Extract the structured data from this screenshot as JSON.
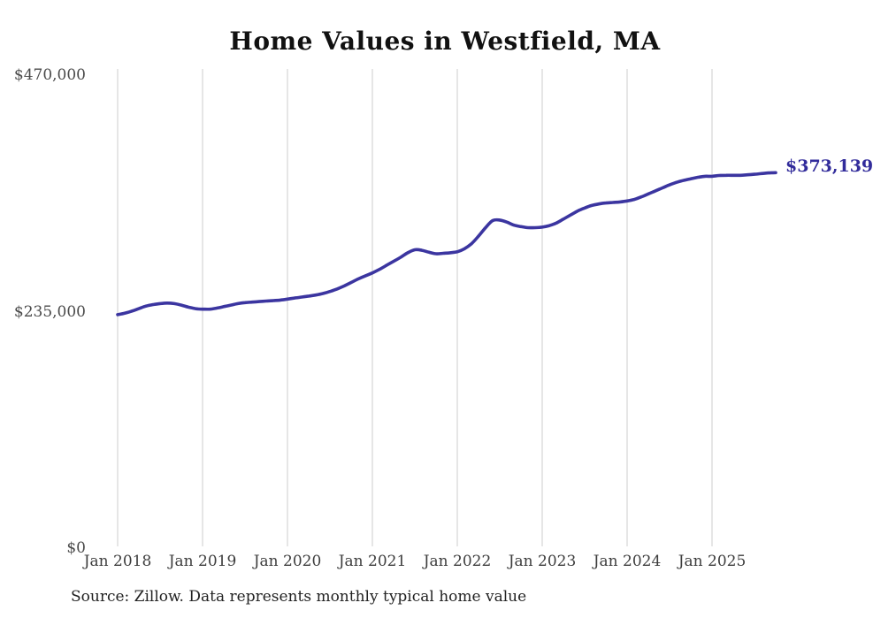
{
  "title": "Home Values in Westfield, MA",
  "source_note": "Source: Zillow. Data represents monthly typical home value",
  "colors": {
    "background": "#ffffff",
    "title_text": "#111111",
    "line": "#3b35a0",
    "end_label_text": "#322c9b",
    "gridline": "#cccccc",
    "y_tick_text": "#4a4a4a",
    "x_tick_text": "#3d3d3d",
    "source_text": "#222222"
  },
  "chart_data": {
    "type": "line",
    "title": "Home Values in Westfield, MA",
    "xlabel": "",
    "ylabel": "",
    "ylim": [
      0,
      470000
    ],
    "grid": "vertical-only",
    "legend_position": "none",
    "x_start_month": "Jan 2018",
    "x_end_month": "Oct 2025",
    "xticks": [
      "Jan 2018",
      "Jan 2019",
      "Jan 2020",
      "Jan 2021",
      "Jan 2022",
      "Jan 2023",
      "Jan 2024",
      "Jan 2025"
    ],
    "yticks": [
      {
        "label": "$470,000",
        "value": 470000
      },
      {
        "label": "$235,000",
        "value": 235000
      },
      {
        "label": "$0",
        "value": 0
      }
    ],
    "end_label": "$373,139",
    "series": [
      {
        "name": "Monthly typical home value",
        "points_per_year": 12,
        "values": [
          232000,
          233500,
          235500,
          238000,
          240500,
          242000,
          243000,
          243500,
          243000,
          241500,
          239500,
          238000,
          237500,
          237500,
          238500,
          240000,
          241500,
          243000,
          244000,
          244500,
          245000,
          245500,
          246000,
          246500,
          247500,
          248500,
          249500,
          250500,
          251500,
          253000,
          255000,
          257500,
          260500,
          264000,
          267500,
          270500,
          273500,
          277000,
          281000,
          285000,
          289000,
          293500,
          296500,
          296000,
          294000,
          292500,
          293000,
          293500,
          294500,
          297500,
          302500,
          310000,
          318500,
          325500,
          326000,
          324000,
          321000,
          319500,
          318500,
          318500,
          319000,
          320500,
          323000,
          327000,
          331000,
          335000,
          338000,
          340500,
          342000,
          343000,
          343500,
          344000,
          345000,
          346500,
          349000,
          352000,
          355000,
          358000,
          361000,
          363500,
          365500,
          367000,
          368500,
          369500,
          369500,
          370300,
          370500,
          370500,
          370500,
          371000,
          371500,
          372200,
          372800,
          373139
        ]
      }
    ]
  }
}
